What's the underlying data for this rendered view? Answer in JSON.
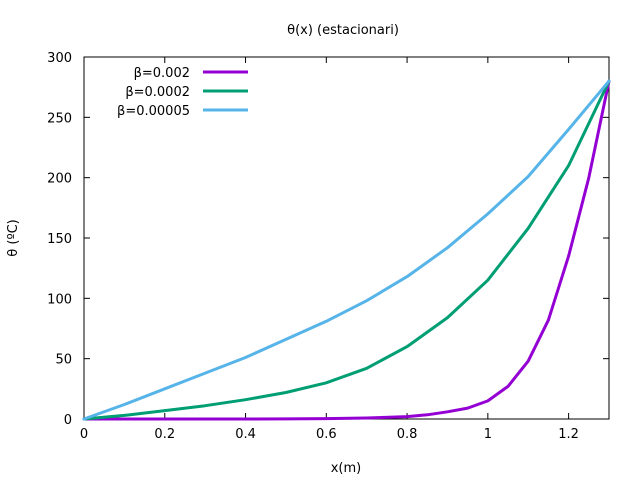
{
  "chart_data": {
    "type": "line",
    "title": "θ(x) (estacionari)",
    "xlabel": "x(m)",
    "ylabel": "θ (ºC)",
    "xlim": [
      0,
      1.3
    ],
    "ylim": [
      0,
      300
    ],
    "xticks": [
      0,
      0.2,
      0.4,
      0.6,
      0.8,
      1,
      1.2
    ],
    "xtick_labels": [
      "0",
      "0.2",
      "0.4",
      "0.6",
      "0.8",
      "1",
      "1.2"
    ],
    "yticks": [
      0,
      50,
      100,
      150,
      200,
      250,
      300
    ],
    "ytick_labels": [
      "0",
      "50",
      "100",
      "150",
      "200",
      "250",
      "300"
    ],
    "grid": false,
    "legend_position": "top-left",
    "series": [
      {
        "name": "β=0.002",
        "color": "#9400d3",
        "x": [
          0,
          0.1,
          0.2,
          0.3,
          0.4,
          0.5,
          0.6,
          0.7,
          0.8,
          0.85,
          0.9,
          0.95,
          1.0,
          1.05,
          1.1,
          1.15,
          1.2,
          1.25,
          1.3
        ],
        "y": [
          0,
          0,
          0,
          0,
          0,
          0.1,
          0.3,
          0.8,
          2,
          3.5,
          6,
          9,
          15,
          27,
          48,
          82,
          135,
          200,
          280
        ]
      },
      {
        "name": "β=0.0002",
        "color": "#009e73",
        "x": [
          0,
          0.1,
          0.2,
          0.3,
          0.4,
          0.5,
          0.6,
          0.7,
          0.8,
          0.9,
          1.0,
          1.1,
          1.2,
          1.3
        ],
        "y": [
          0,
          3,
          7,
          11,
          16,
          22,
          30,
          42,
          60,
          84,
          115,
          158,
          210,
          280
        ]
      },
      {
        "name": "β=0.00005",
        "color": "#56b4e9",
        "x": [
          0,
          0.1,
          0.2,
          0.3,
          0.4,
          0.5,
          0.6,
          0.7,
          0.8,
          0.9,
          1.0,
          1.1,
          1.2,
          1.3
        ],
        "y": [
          0,
          12,
          25,
          38,
          51,
          66,
          81,
          98,
          118,
          142,
          170,
          201,
          240,
          280
        ]
      }
    ]
  }
}
